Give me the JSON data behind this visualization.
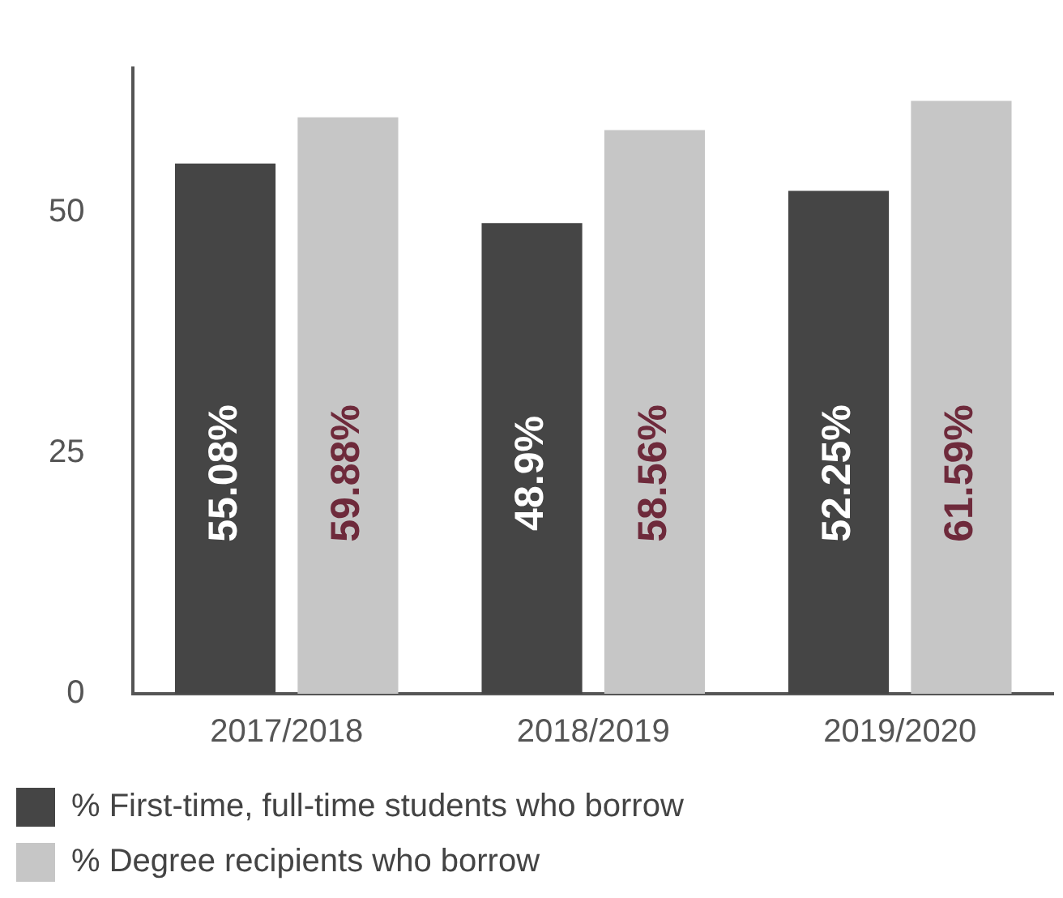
{
  "chart_data": {
    "type": "bar",
    "categories": [
      "2017/2018",
      "2018/2019",
      "2019/2020"
    ],
    "series": [
      {
        "name": "% First-time, full-time students who borrow",
        "color": "#454545",
        "values": [
          55.08,
          48.9,
          52.25
        ],
        "value_labels": [
          "55.08%",
          "48.9%",
          "52.25%"
        ]
      },
      {
        "name": "% Degree recipients who borrow",
        "color": "#c6c6c6",
        "values": [
          59.88,
          58.56,
          61.59
        ],
        "value_labels": [
          "59.88%",
          "58.56%",
          "61.59%"
        ]
      }
    ],
    "ylim": [
      0,
      65
    ],
    "yticks": [
      0,
      25,
      50
    ],
    "grid": false,
    "legend": "bottom"
  }
}
